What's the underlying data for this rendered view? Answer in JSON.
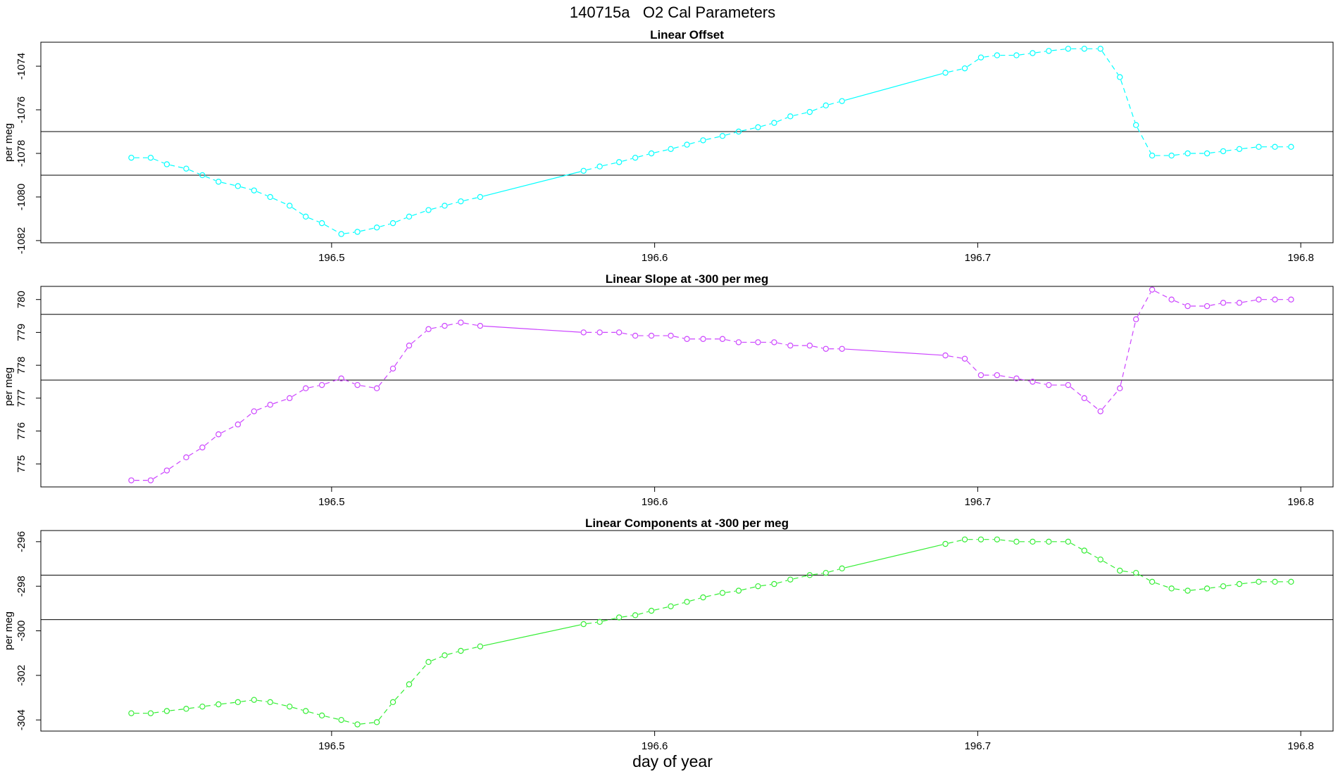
{
  "figure": {
    "title": "140715a   O2 Cal Parameters",
    "xlabel": "day of year"
  },
  "chart_data": [
    {
      "type": "line",
      "title": "Linear Offset",
      "ylabel": "per meg",
      "xlim": [
        196.41,
        196.81
      ],
      "ylim": [
        -1082.1,
        -1072.9
      ],
      "xticks": [
        196.5,
        196.6,
        196.7,
        196.8
      ],
      "yticks": [
        -1082,
        -1080,
        -1078,
        -1076,
        -1074
      ],
      "hlines": [
        -1077,
        -1079
      ],
      "color": "#00ffff",
      "series": [
        {
          "points": [
            [
              196.438,
              -1078.2
            ],
            [
              196.444,
              -1078.2
            ],
            [
              196.449,
              -1078.5
            ],
            [
              196.455,
              -1078.7
            ],
            [
              196.46,
              -1079.0
            ],
            [
              196.465,
              -1079.3
            ],
            [
              196.471,
              -1079.5
            ],
            [
              196.476,
              -1079.7
            ],
            [
              196.481,
              -1080.0
            ],
            [
              196.487,
              -1080.4
            ],
            [
              196.492,
              -1080.9
            ],
            [
              196.497,
              -1081.2
            ],
            [
              196.503,
              -1081.7
            ],
            [
              196.508,
              -1081.6
            ],
            [
              196.514,
              -1081.4
            ],
            [
              196.519,
              -1081.2
            ],
            [
              196.524,
              -1080.9
            ],
            [
              196.53,
              -1080.6
            ],
            [
              196.535,
              -1080.4
            ],
            [
              196.54,
              -1080.2
            ],
            [
              196.546,
              -1080.0
            ],
            [
              196.578,
              -1078.8
            ],
            [
              196.583,
              -1078.6
            ],
            [
              196.589,
              -1078.4
            ],
            [
              196.594,
              -1078.2
            ],
            [
              196.599,
              -1078.0
            ],
            [
              196.605,
              -1077.8
            ],
            [
              196.61,
              -1077.6
            ],
            [
              196.615,
              -1077.4
            ],
            [
              196.621,
              -1077.2
            ],
            [
              196.626,
              -1077.0
            ],
            [
              196.632,
              -1076.8
            ],
            [
              196.637,
              -1076.6
            ],
            [
              196.642,
              -1076.3
            ],
            [
              196.648,
              -1076.1
            ],
            [
              196.653,
              -1075.8
            ],
            [
              196.658,
              -1075.6
            ],
            [
              196.69,
              -1074.3
            ],
            [
              196.696,
              -1074.1
            ],
            [
              196.701,
              -1073.6
            ],
            [
              196.706,
              -1073.5
            ],
            [
              196.712,
              -1073.5
            ],
            [
              196.717,
              -1073.4
            ],
            [
              196.722,
              -1073.3
            ],
            [
              196.728,
              -1073.2
            ],
            [
              196.733,
              -1073.2
            ],
            [
              196.738,
              -1073.2
            ],
            [
              196.744,
              -1074.5
            ],
            [
              196.749,
              -1076.7
            ],
            [
              196.754,
              -1078.1
            ],
            [
              196.76,
              -1078.1
            ],
            [
              196.765,
              -1078.0
            ],
            [
              196.771,
              -1078.0
            ],
            [
              196.776,
              -1077.9
            ],
            [
              196.781,
              -1077.8
            ],
            [
              196.787,
              -1077.7
            ],
            [
              196.792,
              -1077.7
            ],
            [
              196.797,
              -1077.7
            ]
          ]
        }
      ]
    },
    {
      "type": "line",
      "title": "Linear Slope at -300 per meg",
      "ylabel": "per meg",
      "xlim": [
        196.41,
        196.81
      ],
      "ylim": [
        774.3,
        780.4
      ],
      "xticks": [
        196.5,
        196.6,
        196.7,
        196.8
      ],
      "yticks": [
        775,
        776,
        777,
        778,
        779,
        780
      ],
      "hlines": [
        779.55,
        777.55
      ],
      "color": "#cc44ff",
      "series": [
        {
          "points": [
            [
              196.438,
              774.5
            ],
            [
              196.444,
              774.5
            ],
            [
              196.449,
              774.8
            ],
            [
              196.455,
              775.2
            ],
            [
              196.46,
              775.5
            ],
            [
              196.465,
              775.9
            ],
            [
              196.471,
              776.2
            ],
            [
              196.476,
              776.6
            ],
            [
              196.481,
              776.8
            ],
            [
              196.487,
              777.0
            ],
            [
              196.492,
              777.3
            ],
            [
              196.497,
              777.4
            ],
            [
              196.503,
              777.6
            ],
            [
              196.508,
              777.4
            ],
            [
              196.514,
              777.3
            ],
            [
              196.519,
              777.9
            ],
            [
              196.524,
              778.6
            ],
            [
              196.53,
              779.1
            ],
            [
              196.535,
              779.2
            ],
            [
              196.54,
              779.3
            ],
            [
              196.546,
              779.2
            ],
            [
              196.578,
              779.0
            ],
            [
              196.583,
              779.0
            ],
            [
              196.589,
              779.0
            ],
            [
              196.594,
              778.9
            ],
            [
              196.599,
              778.9
            ],
            [
              196.605,
              778.9
            ],
            [
              196.61,
              778.8
            ],
            [
              196.615,
              778.8
            ],
            [
              196.621,
              778.8
            ],
            [
              196.626,
              778.7
            ],
            [
              196.632,
              778.7
            ],
            [
              196.637,
              778.7
            ],
            [
              196.642,
              778.6
            ],
            [
              196.648,
              778.6
            ],
            [
              196.653,
              778.5
            ],
            [
              196.658,
              778.5
            ],
            [
              196.69,
              778.3
            ],
            [
              196.696,
              778.2
            ],
            [
              196.701,
              777.7
            ],
            [
              196.706,
              777.7
            ],
            [
              196.712,
              777.6
            ],
            [
              196.717,
              777.5
            ],
            [
              196.722,
              777.4
            ],
            [
              196.728,
              777.4
            ],
            [
              196.733,
              777.0
            ],
            [
              196.738,
              776.6
            ],
            [
              196.744,
              777.3
            ],
            [
              196.749,
              779.4
            ],
            [
              196.754,
              780.3
            ],
            [
              196.76,
              780.0
            ],
            [
              196.765,
              779.8
            ],
            [
              196.771,
              779.8
            ],
            [
              196.776,
              779.9
            ],
            [
              196.781,
              779.9
            ],
            [
              196.787,
              780.0
            ],
            [
              196.792,
              780.0
            ],
            [
              196.797,
              780.0
            ]
          ]
        }
      ]
    },
    {
      "type": "line",
      "title": "Linear Components at -300 per meg",
      "ylabel": "per meg",
      "xlim": [
        196.41,
        196.81
      ],
      "ylim": [
        -304.5,
        -295.5
      ],
      "xticks": [
        196.5,
        196.6,
        196.7,
        196.8
      ],
      "yticks": [
        -304,
        -302,
        -300,
        -298,
        -296
      ],
      "hlines": [
        -297.5,
        -299.5
      ],
      "color": "#33ee33",
      "series": [
        {
          "points": [
            [
              196.438,
              -303.7
            ],
            [
              196.444,
              -303.7
            ],
            [
              196.449,
              -303.6
            ],
            [
              196.455,
              -303.5
            ],
            [
              196.46,
              -303.4
            ],
            [
              196.465,
              -303.3
            ],
            [
              196.471,
              -303.2
            ],
            [
              196.476,
              -303.1
            ],
            [
              196.481,
              -303.2
            ],
            [
              196.487,
              -303.4
            ],
            [
              196.492,
              -303.6
            ],
            [
              196.497,
              -303.8
            ],
            [
              196.503,
              -304.0
            ],
            [
              196.508,
              -304.2
            ],
            [
              196.514,
              -304.1
            ],
            [
              196.519,
              -303.2
            ],
            [
              196.524,
              -302.4
            ],
            [
              196.53,
              -301.4
            ],
            [
              196.535,
              -301.1
            ],
            [
              196.54,
              -300.9
            ],
            [
              196.546,
              -300.7
            ],
            [
              196.578,
              -299.7
            ],
            [
              196.583,
              -299.6
            ],
            [
              196.589,
              -299.4
            ],
            [
              196.594,
              -299.3
            ],
            [
              196.599,
              -299.1
            ],
            [
              196.605,
              -298.9
            ],
            [
              196.61,
              -298.7
            ],
            [
              196.615,
              -298.5
            ],
            [
              196.621,
              -298.3
            ],
            [
              196.626,
              -298.2
            ],
            [
              196.632,
              -298.0
            ],
            [
              196.637,
              -297.9
            ],
            [
              196.642,
              -297.7
            ],
            [
              196.648,
              -297.5
            ],
            [
              196.653,
              -297.4
            ],
            [
              196.658,
              -297.2
            ],
            [
              196.69,
              -296.1
            ],
            [
              196.696,
              -295.9
            ],
            [
              196.701,
              -295.9
            ],
            [
              196.706,
              -295.9
            ],
            [
              196.712,
              -296.0
            ],
            [
              196.717,
              -296.0
            ],
            [
              196.722,
              -296.0
            ],
            [
              196.728,
              -296.0
            ],
            [
              196.733,
              -296.4
            ],
            [
              196.738,
              -296.8
            ],
            [
              196.744,
              -297.3
            ],
            [
              196.749,
              -297.4
            ],
            [
              196.754,
              -297.8
            ],
            [
              196.76,
              -298.1
            ],
            [
              196.765,
              -298.2
            ],
            [
              196.771,
              -298.1
            ],
            [
              196.776,
              -298.0
            ],
            [
              196.781,
              -297.9
            ],
            [
              196.787,
              -297.8
            ],
            [
              196.792,
              -297.8
            ],
            [
              196.797,
              -297.8
            ]
          ]
        }
      ]
    }
  ]
}
